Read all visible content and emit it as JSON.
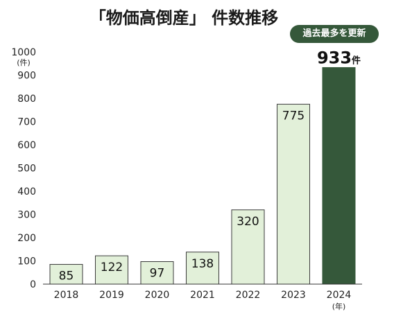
{
  "chart_data": {
    "type": "bar",
    "title": "「物価高倒産」 件数推移",
    "ylabel_unit": "(件)",
    "xlabel_unit": "(年)",
    "ylim": [
      0,
      1000
    ],
    "yticks": [
      "0",
      "100",
      "200",
      "300",
      "400",
      "500",
      "600",
      "700",
      "800",
      "900",
      "1000"
    ],
    "categories": [
      "2018",
      "2019",
      "2020",
      "2021",
      "2022",
      "2023",
      "2024"
    ],
    "values": [
      85,
      122,
      97,
      138,
      320,
      775,
      933
    ],
    "value_labels": [
      "85",
      "122",
      "97",
      "138",
      "320",
      "775",
      "933"
    ],
    "highlight_index": 6,
    "highlight_suffix": "件",
    "badge": "過去最多を更新",
    "colors": {
      "bar_fill": "#e2f0d9",
      "bar_stroke": "#3a3a3a",
      "highlight_fill": "#35583a",
      "axis": "#333333"
    }
  }
}
